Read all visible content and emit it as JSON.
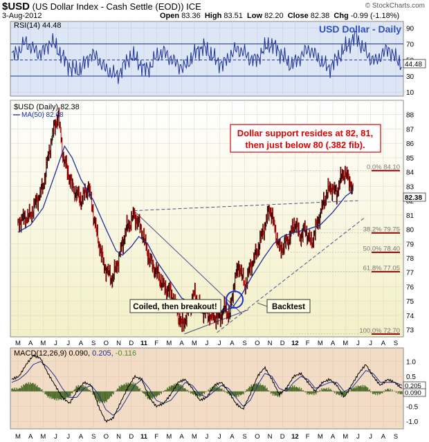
{
  "header": {
    "symbol": "$USD",
    "name": "(US Dollar Index - Cash Settle (EOD))",
    "exchange": "ICE",
    "date": "3-Aug-2012",
    "open_label": "Open",
    "open": "83.36",
    "high_label": "High",
    "high": "83.51",
    "low_label": "Low",
    "low": "82.20",
    "close_label": "Close",
    "close": "82.38",
    "chg_label": "Chg",
    "chg": "-0.99 (-1.18%)",
    "brand": "© StockCharts.com"
  },
  "colors": {
    "rsi_bg": "#dde6f5",
    "price_bg_top": "#ffffff",
    "price_bg_bottom": "#f3efc6",
    "macd_bg": "#f2dcc6",
    "indicator_line": "#1b2f97",
    "up_bar": "#000000",
    "down_bar": "#d20000",
    "fib_line": "#8b0000",
    "annotation_red": "#e00000",
    "title_blue": "#2f4fc0",
    "macd_hist": "#4c6b2a",
    "macd_signal": "#1b2f97"
  },
  "chart_data": [
    {
      "type": "line",
      "name": "rsi",
      "legend": "RSI(14) 44.48",
      "title": "USD Dollar - Daily",
      "last_value": "44.48",
      "ylim": [
        5,
        98
      ],
      "reference_lines": [
        70,
        50,
        30
      ],
      "y_ticks": [
        "90",
        "70",
        "50",
        "30",
        "10"
      ],
      "series": [
        {
          "values": [
            55,
            60,
            72,
            66,
            58,
            63,
            74,
            62,
            50,
            40,
            36,
            45,
            58,
            52,
            40,
            34,
            30,
            44,
            55,
            50,
            38,
            42,
            56,
            60,
            52,
            45,
            40,
            50,
            62,
            66,
            58,
            48,
            45,
            55,
            64,
            60,
            52,
            50,
            62,
            70,
            65,
            55,
            44,
            48,
            58,
            64,
            55,
            46,
            40,
            50,
            60,
            70,
            80,
            66,
            54,
            48,
            58,
            64,
            52,
            44
          ]
        }
      ]
    },
    {
      "type": "candlestick",
      "name": "price",
      "legend_main": "$USD (Daily) 82.38",
      "legend_ma": "MA(50) 82.68",
      "last_value": "82.38",
      "ylim": [
        72.5,
        89
      ],
      "y_ticks": [
        "88",
        "87",
        "86",
        "85",
        "84",
        "83",
        "82",
        "81",
        "80",
        "79",
        "78",
        "77",
        "76",
        "75",
        "74",
        "73"
      ],
      "x_ticks": [
        "M",
        "A",
        "M",
        "J",
        "J",
        "A",
        "S",
        "O",
        "N",
        "D",
        "11",
        "F",
        "M",
        "A",
        "M",
        "J",
        "J",
        "A",
        "S",
        "O",
        "N",
        "D",
        "12",
        "F",
        "M",
        "A",
        "M",
        "J",
        "J",
        "A",
        "S"
      ],
      "close_path": [
        {
          "m": 0,
          "v": 80.5
        },
        {
          "m": 1,
          "v": 81.0
        },
        {
          "m": 2,
          "v": 83.0
        },
        {
          "m": 2.7,
          "v": 86.5
        },
        {
          "m": 3.2,
          "v": 88.0
        },
        {
          "m": 3.6,
          "v": 85.0
        },
        {
          "m": 4.3,
          "v": 83.0
        },
        {
          "m": 5,
          "v": 82.0
        },
        {
          "m": 5.6,
          "v": 83.0
        },
        {
          "m": 6.2,
          "v": 80.0
        },
        {
          "m": 6.8,
          "v": 77.5
        },
        {
          "m": 7.5,
          "v": 76.5
        },
        {
          "m": 8,
          "v": 78.0
        },
        {
          "m": 8.6,
          "v": 80.0
        },
        {
          "m": 9.2,
          "v": 81.0
        },
        {
          "m": 9.8,
          "v": 80.0
        },
        {
          "m": 10.4,
          "v": 78.0
        },
        {
          "m": 11,
          "v": 77.0
        },
        {
          "m": 11.6,
          "v": 76.0
        },
        {
          "m": 12.2,
          "v": 75.5
        },
        {
          "m": 12.6,
          "v": 74.5
        },
        {
          "m": 13,
          "v": 73.2
        },
        {
          "m": 13.4,
          "v": 74.0
        },
        {
          "m": 14,
          "v": 75.5
        },
        {
          "m": 14.5,
          "v": 74.5
        },
        {
          "m": 15.2,
          "v": 74.0
        },
        {
          "m": 16,
          "v": 73.8
        },
        {
          "m": 16.4,
          "v": 74.5
        },
        {
          "m": 16.8,
          "v": 74.0
        },
        {
          "m": 17.2,
          "v": 76.5
        },
        {
          "m": 17.6,
          "v": 77.5
        },
        {
          "m": 18,
          "v": 76.0
        },
        {
          "m": 18.5,
          "v": 77.5
        },
        {
          "m": 19,
          "v": 78.5
        },
        {
          "m": 19.5,
          "v": 80.0
        },
        {
          "m": 20,
          "v": 81.5
        },
        {
          "m": 20.4,
          "v": 80.0
        },
        {
          "m": 20.8,
          "v": 78.5
        },
        {
          "m": 21.2,
          "v": 79.0
        },
        {
          "m": 21.6,
          "v": 79.5
        },
        {
          "m": 22,
          "v": 80.5
        },
        {
          "m": 22.4,
          "v": 79.5
        },
        {
          "m": 22.8,
          "v": 80.0
        },
        {
          "m": 23.3,
          "v": 79.0
        },
        {
          "m": 23.8,
          "v": 80.5
        },
        {
          "m": 24.3,
          "v": 82.0
        },
        {
          "m": 24.8,
          "v": 83.0
        },
        {
          "m": 25.3,
          "v": 82.5
        },
        {
          "m": 25.8,
          "v": 84.0
        },
        {
          "m": 26.3,
          "v": 83.5
        },
        {
          "m": 26.6,
          "v": 82.4
        }
      ],
      "ma50_path": [
        {
          "m": 0,
          "v": 79.8
        },
        {
          "m": 1,
          "v": 80.3
        },
        {
          "m": 2,
          "v": 81.5
        },
        {
          "m": 3,
          "v": 84.0
        },
        {
          "m": 3.7,
          "v": 85.8
        },
        {
          "m": 4.3,
          "v": 85.0
        },
        {
          "m": 5,
          "v": 83.5
        },
        {
          "m": 6,
          "v": 82.0
        },
        {
          "m": 7,
          "v": 80.0
        },
        {
          "m": 7.8,
          "v": 78.5
        },
        {
          "m": 8.3,
          "v": 78.2
        },
        {
          "m": 9,
          "v": 78.8
        },
        {
          "m": 9.6,
          "v": 79.5
        },
        {
          "m": 10.3,
          "v": 79.0
        },
        {
          "m": 11,
          "v": 77.8
        },
        {
          "m": 12,
          "v": 76.5
        },
        {
          "m": 13,
          "v": 75.2
        },
        {
          "m": 14,
          "v": 74.8
        },
        {
          "m": 15,
          "v": 74.8
        },
        {
          "m": 16,
          "v": 74.3
        },
        {
          "m": 17,
          "v": 74.5
        },
        {
          "m": 17.8,
          "v": 75.5
        },
        {
          "m": 18.5,
          "v": 76.6
        },
        {
          "m": 19.5,
          "v": 78.0
        },
        {
          "m": 20.3,
          "v": 79.0
        },
        {
          "m": 21,
          "v": 79.5
        },
        {
          "m": 22,
          "v": 79.8
        },
        {
          "m": 23,
          "v": 80.0
        },
        {
          "m": 24,
          "v": 80.3
        },
        {
          "m": 25,
          "v": 81.2
        },
        {
          "m": 26,
          "v": 82.3
        },
        {
          "m": 26.6,
          "v": 82.7
        }
      ],
      "fib_levels": [
        {
          "label": "0.0%",
          "value": 84.1,
          "text": "84.10"
        },
        {
          "label": "38.2%",
          "value": 79.75,
          "text": "79.75"
        },
        {
          "label": "50.0%",
          "value": 78.4,
          "text": "78.40"
        },
        {
          "label": "61.8%",
          "value": 77.05,
          "text": "77.05"
        },
        {
          "label": "100.0%",
          "value": 72.7,
          "text": "72.70"
        }
      ],
      "trendlines": [
        {
          "from": {
            "m": 9.2,
            "v": 81.3
          },
          "to": {
            "m": 27,
            "v": 82.0
          },
          "style": "dashed"
        },
        {
          "from": {
            "m": 9.2,
            "v": 81.3
          },
          "to": {
            "m": 17.8,
            "v": 74.1
          },
          "style": "solid"
        },
        {
          "from": {
            "m": 13.2,
            "v": 72.7
          },
          "to": {
            "m": 18.3,
            "v": 74.4
          },
          "style": "solid"
        },
        {
          "from": {
            "m": 15.8,
            "v": 72.8
          },
          "to": {
            "m": 27.5,
            "v": 80.8
          },
          "style": "dashed"
        }
      ],
      "annotations": {
        "support_text_line1": "Dollar support resides at 82, 81,",
        "support_text_line2": "then just below 80 (.382 fib).",
        "coiled": "Coiled, then breakout!",
        "backtest": "Backtest"
      },
      "circle_at": {
        "m": 17.2,
        "v": 75.1
      }
    },
    {
      "type": "line",
      "name": "macd",
      "legend_prefix": "MACD(12,26,9)",
      "legend_macd": "0.090,",
      "legend_signal": "0.205,",
      "legend_hist": "-0.116",
      "last_macd": "0.090",
      "last_signal": "0.205",
      "ylim": [
        -1.25,
        1.45
      ],
      "y_ticks": [
        "1.0",
        "0.5",
        "0.0",
        "-0.5",
        "-1.0"
      ],
      "series": [
        {
          "name": "macd",
          "values": [
            0.4,
            0.5,
            0.9,
            1.2,
            1.1,
            0.6,
            0.2,
            -0.2,
            -0.4,
            0.0,
            0.3,
            0.2,
            -0.5,
            -1.0,
            -0.9,
            -0.4,
            0.1,
            0.5,
            0.4,
            -0.2,
            -0.5,
            -0.4,
            -0.1,
            0.3,
            0.4,
            0.1,
            -0.3,
            -0.2,
            0.2,
            0.3,
            0.0,
            -0.4,
            -0.6,
            -0.1,
            0.5,
            0.8,
            0.4,
            -0.1,
            0.1,
            0.5,
            0.6,
            0.3,
            0.0,
            0.3,
            0.4,
            0.2,
            -0.2,
            0.2,
            0.6,
            0.9,
            0.5,
            0.2,
            0.4,
            0.3,
            0.09
          ]
        },
        {
          "name": "signal",
          "values": [
            0.3,
            0.4,
            0.6,
            0.9,
            1.0,
            0.8,
            0.5,
            0.1,
            -0.2,
            -0.2,
            0.1,
            0.2,
            -0.1,
            -0.6,
            -0.8,
            -0.6,
            -0.2,
            0.2,
            0.4,
            0.1,
            -0.3,
            -0.4,
            -0.3,
            0.0,
            0.3,
            0.2,
            -0.1,
            -0.2,
            0.0,
            0.2,
            0.1,
            -0.2,
            -0.5,
            -0.3,
            0.2,
            0.6,
            0.5,
            0.1,
            0.0,
            0.3,
            0.5,
            0.4,
            0.1,
            0.2,
            0.3,
            0.3,
            0.0,
            0.1,
            0.4,
            0.7,
            0.6,
            0.3,
            0.3,
            0.3,
            0.205
          ]
        }
      ],
      "x_ticks": [
        "M",
        "A",
        "M",
        "J",
        "J",
        "A",
        "S",
        "O",
        "N",
        "D",
        "11",
        "F",
        "M",
        "A",
        "M",
        "J",
        "J",
        "A",
        "S",
        "O",
        "N",
        "D",
        "12",
        "F",
        "M",
        "A",
        "M",
        "J",
        "J",
        "A",
        "S"
      ]
    }
  ]
}
